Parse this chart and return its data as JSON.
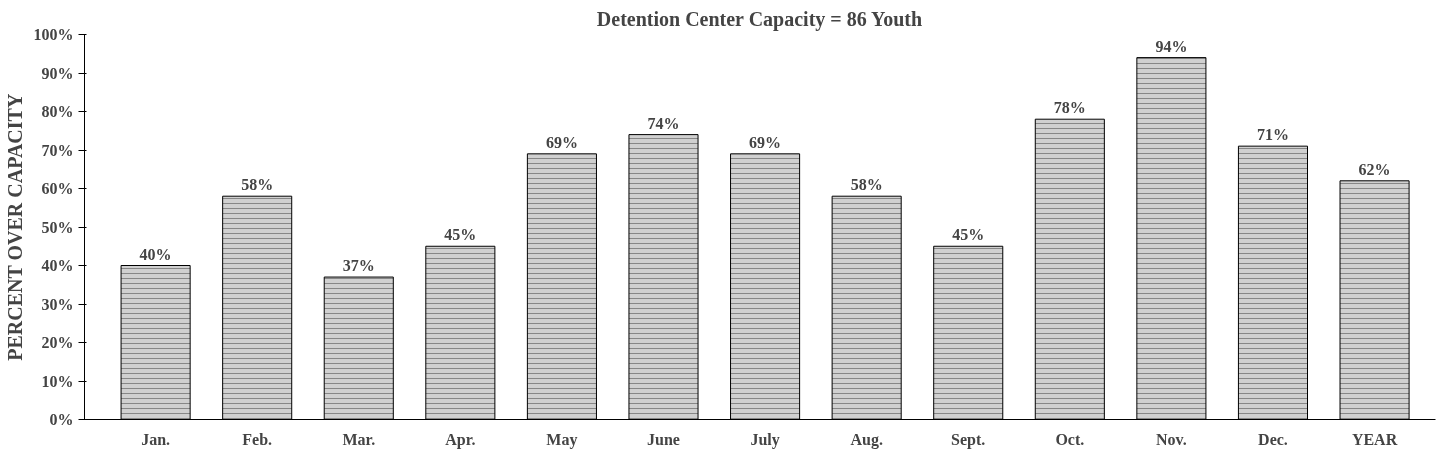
{
  "chart_data": {
    "type": "bar",
    "title": "Detention Center Capacity = 86 Youth",
    "ylabel": "PERCENT OVER CAPACITY",
    "categories": [
      "Jan.",
      "Feb.",
      "Mar.",
      "Apr.",
      "May",
      "June",
      "July",
      "Aug.",
      "Sept.",
      "Oct.",
      "Nov.",
      "Dec.",
      "YEAR"
    ],
    "values": [
      40,
      58,
      37,
      45,
      69,
      74,
      69,
      58,
      45,
      78,
      94,
      71,
      62
    ],
    "value_labels": [
      "40%",
      "58%",
      "37%",
      "45%",
      "69%",
      "74%",
      "69%",
      "58%",
      "45%",
      "78%",
      "94%",
      "71%",
      "62%"
    ],
    "color": "#d0d0d0",
    "ylim": [
      0,
      100
    ],
    "yticks": [
      {
        "value": 0,
        "label": "0%"
      },
      {
        "value": 10,
        "label": "10%"
      },
      {
        "value": 20,
        "label": "20%"
      },
      {
        "value": 30,
        "label": "30%"
      },
      {
        "value": 40,
        "label": "40%"
      },
      {
        "value": 50,
        "label": "50%"
      },
      {
        "value": 60,
        "label": "60%"
      },
      {
        "value": 70,
        "label": "70%"
      },
      {
        "value": 80,
        "label": "80%"
      },
      {
        "value": 90,
        "label": "90%"
      },
      {
        "value": 100,
        "label": "100%"
      }
    ],
    "grid": false
  }
}
